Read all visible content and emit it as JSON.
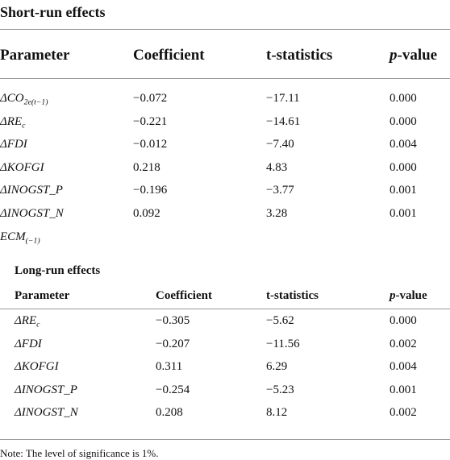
{
  "short_run": {
    "title": "Short-run effects",
    "header": [
      "Parameter",
      "Coefficient",
      "t-statistics",
      {
        "italic": "p",
        "rest": "-value"
      }
    ],
    "rows": [
      {
        "parameter": {
          "base": "ΔCO",
          "sub": "2e(t−1)"
        },
        "coefficient": "−0.072",
        "t": "−17.11",
        "p": "0.000"
      },
      {
        "parameter": {
          "base": "ΔRE",
          "sub": "c"
        },
        "coefficient": "−0.221",
        "t": "−14.61",
        "p": "0.000"
      },
      {
        "parameter": {
          "base": "ΔFDI"
        },
        "coefficient": "−0.012",
        "t": "−7.40",
        "p": "0.004"
      },
      {
        "parameter": {
          "base": "ΔKOFGI"
        },
        "coefficient": "0.218",
        "t": "4.83",
        "p": "0.000"
      },
      {
        "parameter": {
          "base": "ΔINOGST_P"
        },
        "coefficient": "−0.196",
        "t": "−3.77",
        "p": "0.001"
      },
      {
        "parameter": {
          "base": "ΔINOGST_N"
        },
        "coefficient": "0.092",
        "t": "3.28",
        "p": "0.001"
      },
      {
        "parameter": {
          "base": "ECM",
          "sub": "(−1)"
        }
      }
    ]
  },
  "long_run": {
    "title": "Long-run effects",
    "header": [
      "Parameter",
      "Coefficient",
      "t-statistics",
      {
        "italic": "p",
        "rest": "-value"
      }
    ],
    "rows": [
      {
        "parameter": {
          "base": "ΔRE",
          "sub": "c"
        },
        "coefficient": "−0.305",
        "t": "−5.62",
        "p": "0.000"
      },
      {
        "parameter": {
          "base": "ΔFDI"
        },
        "coefficient": "−0.207",
        "t": "−11.56",
        "p": "0.002"
      },
      {
        "parameter": {
          "base": "ΔKOFGI"
        },
        "coefficient": "0.311",
        "t": "6.29",
        "p": "0.004"
      },
      {
        "parameter": {
          "base": "ΔINOGST_P"
        },
        "coefficient": "−0.254",
        "t": "−5.23",
        "p": "0.001"
      },
      {
        "parameter": {
          "base": "ΔINOGST_N"
        },
        "coefficient": "0.208",
        "t": "8.12",
        "p": "0.002"
      }
    ]
  },
  "note": "Note: The level of significance is 1%."
}
